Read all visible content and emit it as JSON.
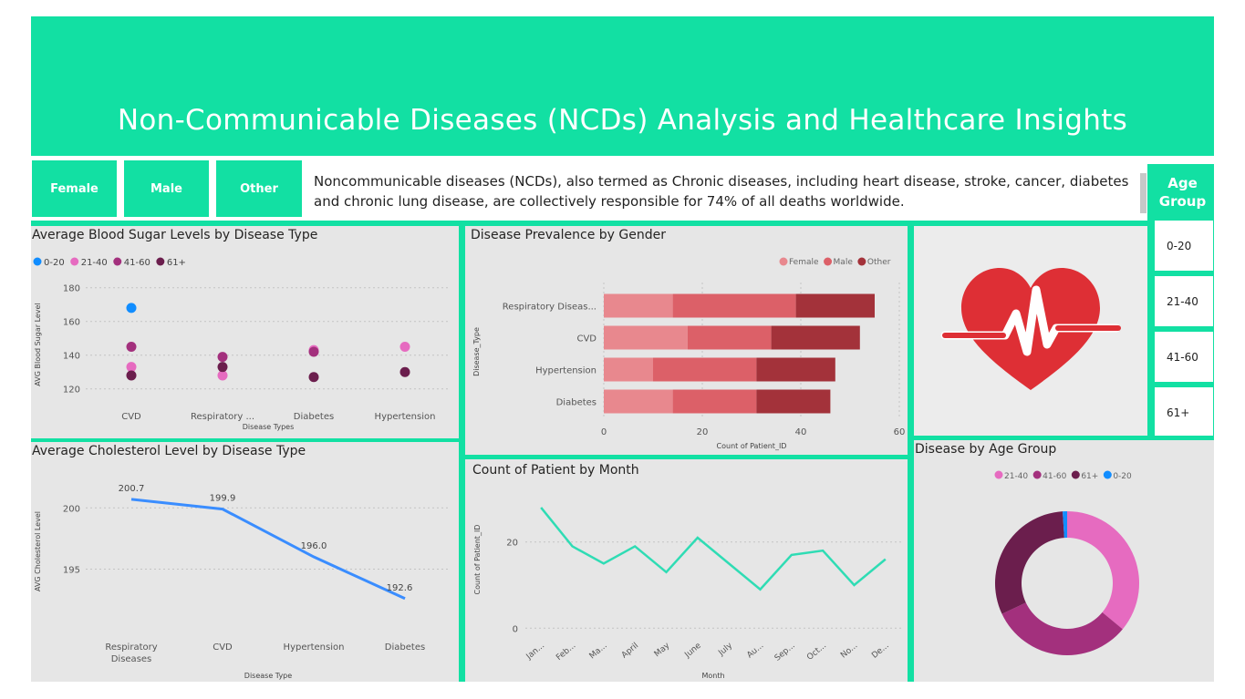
{
  "header": {
    "title": "Non-Communicable Diseases (NCDs) Analysis and Healthcare Insights"
  },
  "filters": {
    "female": "Female",
    "male": "Male",
    "other": "Other"
  },
  "description": "Noncommunicable diseases (NCDs), also termed as Chronic diseases, including heart disease, stroke, cancer, diabetes and chronic lung disease, are collectively responsible for 74% of all deaths worldwide.",
  "age_slicer": {
    "title": "Age Group",
    "options": [
      "0-20",
      "21-40",
      "41-60",
      "61+"
    ]
  },
  "heart_icon": "heartbeat-icon",
  "colors": {
    "accent": "#12E0A3",
    "panel": "#e6e6e6",
    "blue_line": "#3A8DFF",
    "green_line": "#2FDCB4"
  },
  "chart_data": [
    {
      "type": "scatter",
      "title": "Average Blood Sugar Levels by Disease Type",
      "xlabel": "Disease Types",
      "ylabel": "AVG Blood Sugar Level",
      "categories": [
        "CVD",
        "Respiratory ...",
        "Diabetes",
        "Hypertension"
      ],
      "yticks": [
        "120",
        "140",
        "160",
        "180"
      ],
      "ylim": [
        115,
        182
      ],
      "legend": [
        "0-20",
        "21-40",
        "41-60",
        "61+"
      ],
      "series": [
        {
          "name": "0-20",
          "color": "#118DFF",
          "values": [
            168,
            null,
            null,
            null
          ]
        },
        {
          "name": "21-40",
          "color": "#E66BC0",
          "values": [
            133,
            128,
            143,
            145
          ]
        },
        {
          "name": "41-60",
          "color": "#A3307D",
          "values": [
            145,
            139,
            142,
            null
          ]
        },
        {
          "name": "61+",
          "color": "#6B1E4D",
          "values": [
            128,
            133,
            127,
            130
          ]
        }
      ]
    },
    {
      "type": "bar",
      "title": "Disease Prevalence by Gender",
      "xlabel": "Count of Patient_ID",
      "ylabel": "Disease_Type",
      "categories": [
        "Respiratory Diseas...",
        "CVD",
        "Hypertension",
        "Diabetes"
      ],
      "xticks": [
        "0",
        "20",
        "40",
        "60"
      ],
      "xlim": [
        0,
        60
      ],
      "legend": [
        "Female",
        "Male",
        "Other"
      ],
      "series": [
        {
          "name": "Female",
          "color": "#E8888E",
          "values": [
            14,
            17,
            10,
            14
          ]
        },
        {
          "name": "Male",
          "color": "#DC6068",
          "values": [
            25,
            17,
            21,
            17
          ]
        },
        {
          "name": "Other",
          "color": "#A3323A",
          "values": [
            16,
            18,
            16,
            15
          ]
        }
      ]
    },
    {
      "type": "line",
      "title": "Average Cholesterol Level by Disease Type",
      "xlabel": "Disease Type",
      "ylabel": "AVG Cholesterol Level",
      "categories": [
        "Respiratory Diseases",
        "CVD",
        "Hypertension",
        "Diabetes"
      ],
      "values": [
        200.7,
        199.9,
        196.0,
        192.6
      ],
      "labels": [
        "200.7",
        "199.9",
        "196.0",
        "192.6"
      ],
      "yticks": [
        "195",
        "200"
      ],
      "ylim": [
        190.5,
        202.4
      ]
    },
    {
      "type": "line",
      "title": "Count of Patient by Month",
      "xlabel": "Month",
      "ylabel": "Count of Patient_ID",
      "categories": [
        "Jan...",
        "Feb...",
        "Ma...",
        "April",
        "May",
        "June",
        "July",
        "Au...",
        "Sep...",
        "Oct...",
        "No...",
        "De..."
      ],
      "values": [
        28,
        19,
        15,
        19,
        13,
        21,
        15,
        9,
        17,
        18,
        10,
        16
      ],
      "yticks": [
        "0",
        "20"
      ],
      "ylim": [
        -1,
        32
      ]
    },
    {
      "type": "pie",
      "title": "Disease by Age Group",
      "legend": [
        "21-40",
        "41-60",
        "61+",
        "0-20"
      ],
      "series": [
        {
          "name": "21-40",
          "color": "#E66BC0",
          "value": 36
        },
        {
          "name": "41-60",
          "color": "#A3307D",
          "value": 32
        },
        {
          "name": "61+",
          "color": "#6B1E4D",
          "value": 31
        },
        {
          "name": "0-20",
          "color": "#118DFF",
          "value": 1
        }
      ]
    }
  ]
}
